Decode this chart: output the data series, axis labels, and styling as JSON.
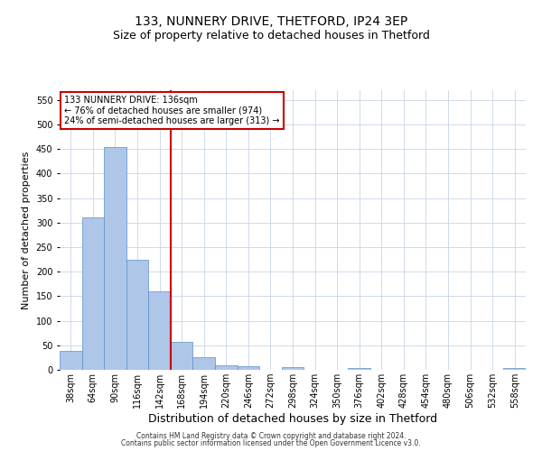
{
  "title": "133, NUNNERY DRIVE, THETFORD, IP24 3EP",
  "subtitle": "Size of property relative to detached houses in Thetford",
  "xlabel": "Distribution of detached houses by size in Thetford",
  "ylabel": "Number of detached properties",
  "footnote1": "Contains HM Land Registry data © Crown copyright and database right 2024.",
  "footnote2": "Contains public sector information licensed under the Open Government Licence v3.0.",
  "annotation_title": "133 NUNNERY DRIVE: 136sqm",
  "annotation_line1": "← 76% of detached houses are smaller (974)",
  "annotation_line2": "24% of semi-detached houses are larger (313) →",
  "bar_labels": [
    "38sqm",
    "64sqm",
    "90sqm",
    "116sqm",
    "142sqm",
    "168sqm",
    "194sqm",
    "220sqm",
    "246sqm",
    "272sqm",
    "298sqm",
    "324sqm",
    "350sqm",
    "376sqm",
    "402sqm",
    "428sqm",
    "454sqm",
    "480sqm",
    "506sqm",
    "532sqm",
    "558sqm"
  ],
  "bar_values": [
    38,
    310,
    455,
    225,
    160,
    57,
    25,
    10,
    8,
    0,
    5,
    0,
    0,
    3,
    0,
    0,
    0,
    0,
    0,
    0,
    4
  ],
  "bar_color": "#aec6e8",
  "bar_edge_color": "#5b8fc9",
  "vline_color": "#cc0000",
  "vline_x": 4.5,
  "ylim": [
    0,
    570
  ],
  "yticks": [
    0,
    50,
    100,
    150,
    200,
    250,
    300,
    350,
    400,
    450,
    500,
    550
  ],
  "annotation_box_color": "#cc0000",
  "annotation_box_fill": "#ffffff",
  "background_color": "#ffffff",
  "grid_color": "#c8d4e8",
  "title_fontsize": 10,
  "subtitle_fontsize": 9,
  "ylabel_fontsize": 8,
  "xlabel_fontsize": 9,
  "tick_fontsize": 7,
  "annot_fontsize": 7,
  "footnote_fontsize": 5.5
}
